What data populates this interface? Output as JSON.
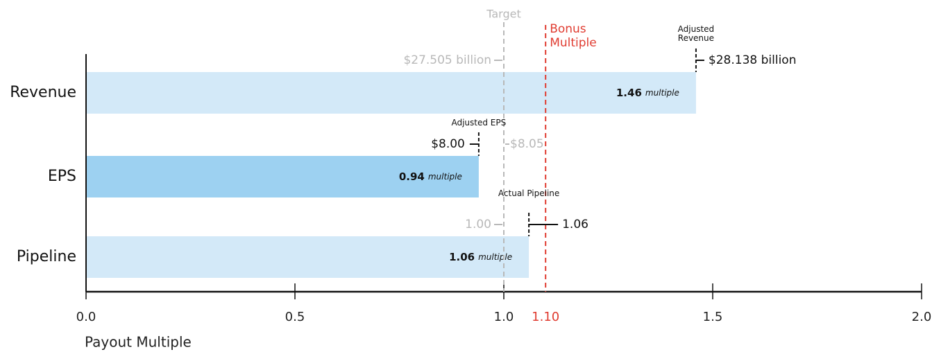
{
  "chart_data": {
    "type": "bar",
    "orientation": "horizontal",
    "categories": [
      "Revenue",
      "EPS",
      "Pipeline"
    ],
    "values": [
      1.46,
      0.94,
      1.06
    ],
    "value_unit": "multiple",
    "colors": [
      "#d3e9f8",
      "#9dd1f1",
      "#d3e9f8"
    ],
    "xlabel": "Payout Multiple",
    "xlim": [
      0,
      2
    ],
    "xticks": [
      {
        "value": 0,
        "label": "0.0"
      },
      0.5,
      {
        "value": 1,
        "label": "1.0"
      },
      1.5,
      {
        "value": 2,
        "label": "2.0"
      }
    ],
    "reference_lines": [
      {
        "label": "Target",
        "value": 1,
        "color": "#b8b8b8"
      },
      {
        "label": "Bonus Multiple",
        "value": 1.1,
        "tick_label": "1.10",
        "color": "#e03c31"
      }
    ],
    "annotations": [
      {
        "target_label": "$27.505 billion",
        "actual_label": "$28.138 billion",
        "caption": "Adjusted Revenue"
      },
      {
        "target_label": "$8.05",
        "actual_label": "$8.00",
        "caption": "Adjusted EPS"
      },
      {
        "target_label": "1.00",
        "actual_label": "1.06",
        "caption": "Actual Pipeline"
      }
    ]
  }
}
